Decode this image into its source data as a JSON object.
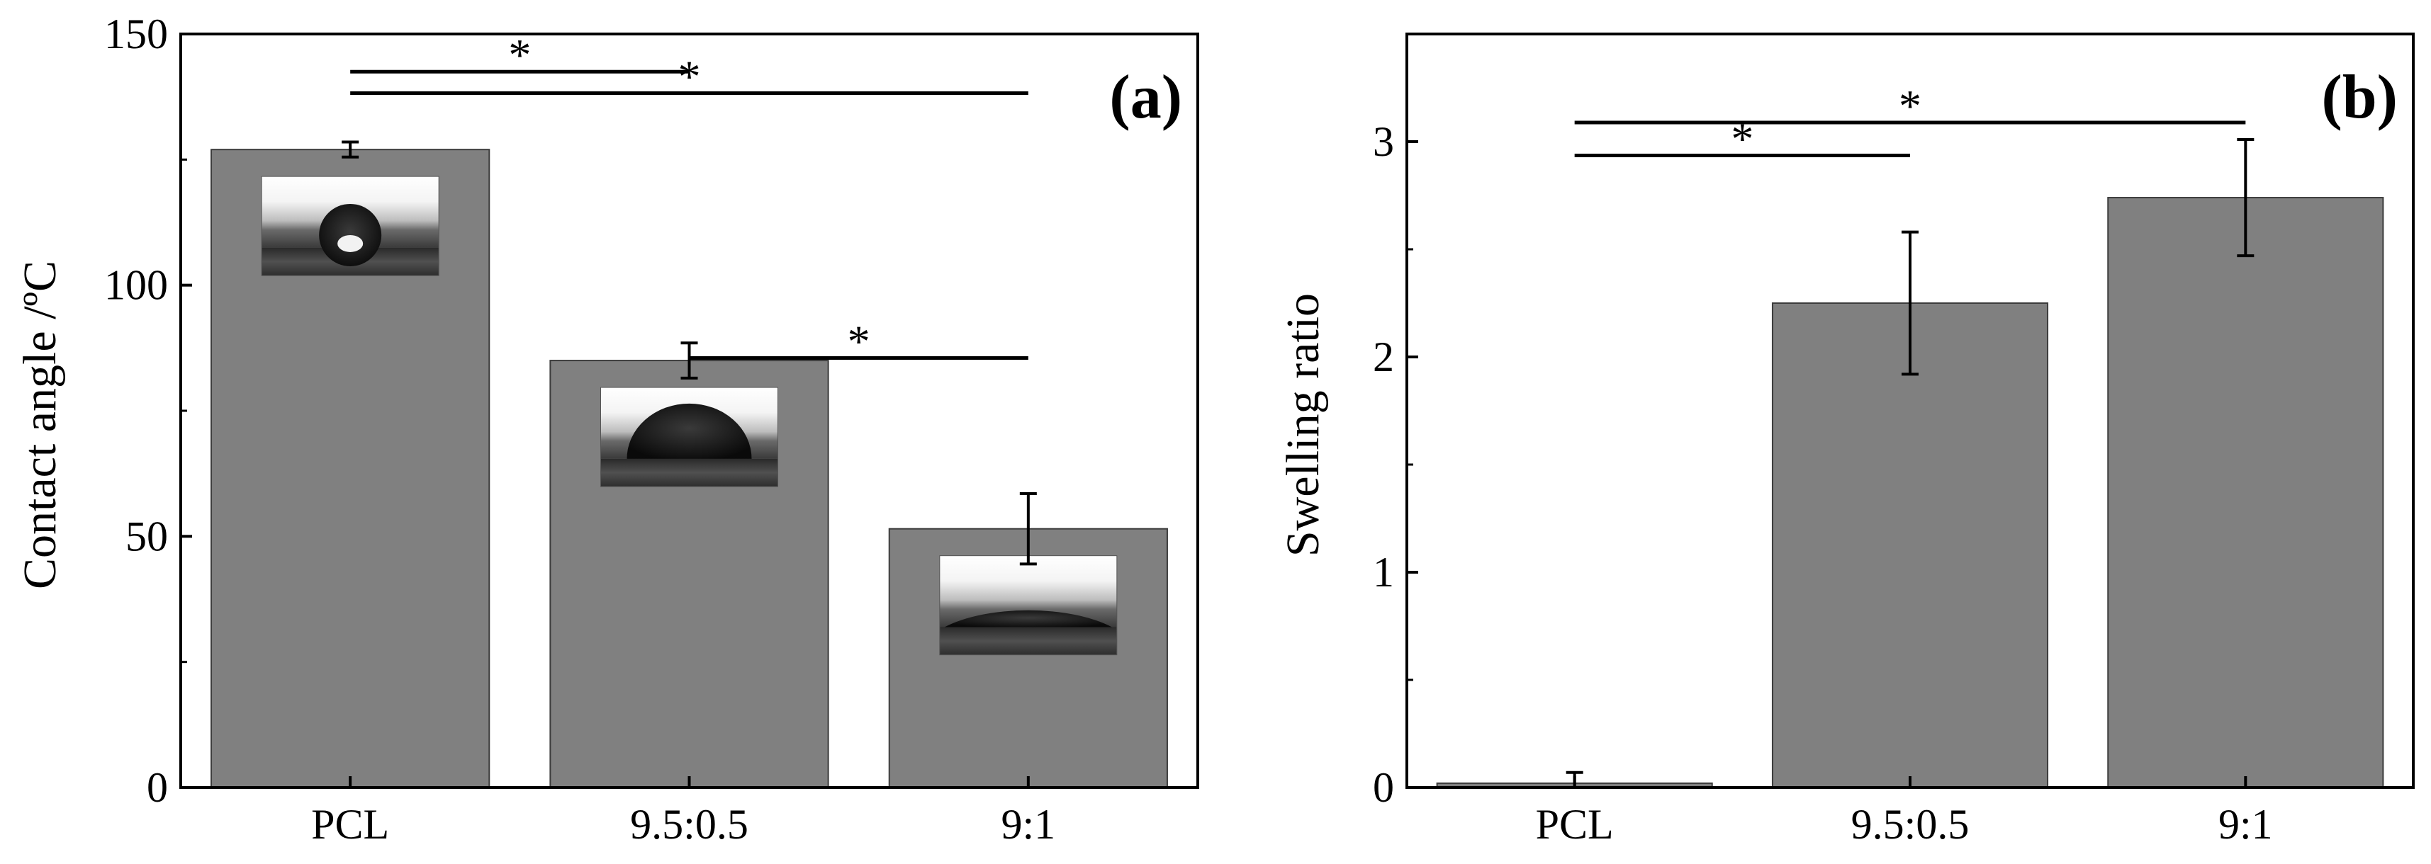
{
  "chart_data": [
    {
      "type": "bar",
      "panel_label": "(a)",
      "categories": [
        "PCL",
        "9.5:0.5",
        "9:1"
      ],
      "values": [
        127,
        85,
        51.5
      ],
      "errors": [
        1.5,
        3.5,
        7
      ],
      "ylabel": "Contact angle /ºC",
      "xlabel": "",
      "ylim": [
        0,
        150
      ],
      "yticks": [
        "0",
        "50",
        "100",
        "150"
      ],
      "bar_color": "#808080",
      "grid": false,
      "insets": [
        "contact-angle-droplet-image",
        "contact-angle-droplet-image",
        "contact-angle-droplet-image"
      ],
      "significance": [
        {
          "from": 0,
          "to": 1,
          "label": "*"
        },
        {
          "from": 0,
          "to": 2,
          "label": "*"
        },
        {
          "from": 1,
          "to": 2,
          "label": "*"
        }
      ]
    },
    {
      "type": "bar",
      "panel_label": "(b)",
      "categories": [
        "PCL",
        "9.5:0.5",
        "9:1"
      ],
      "values": [
        0.02,
        2.25,
        2.74
      ],
      "errors": [
        0.05,
        0.33,
        0.27
      ],
      "ylabel": "Swelling ratio",
      "xlabel": "",
      "ylim": [
        0,
        3.5
      ],
      "yticks": [
        "0",
        "1",
        "2",
        "3"
      ],
      "bar_color": "#808080",
      "grid": false,
      "significance": [
        {
          "from": 0,
          "to": 1,
          "label": "*"
        },
        {
          "from": 0,
          "to": 2,
          "label": "*"
        }
      ]
    }
  ]
}
